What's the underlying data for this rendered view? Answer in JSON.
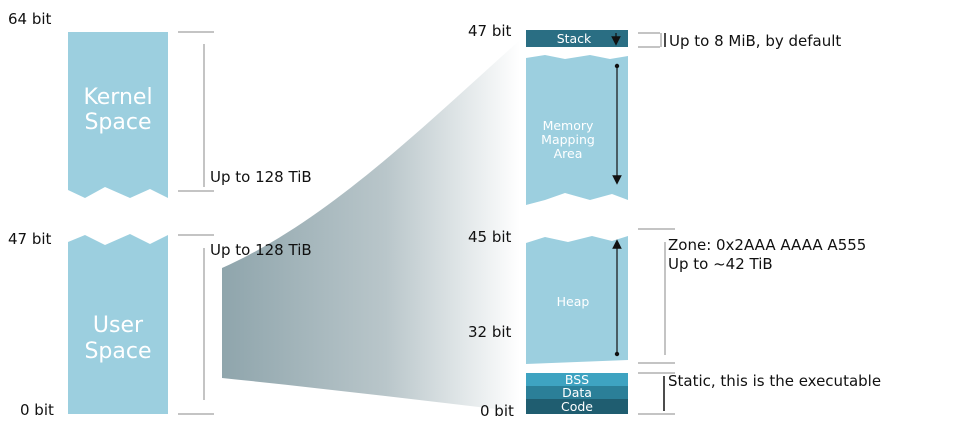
{
  "colors": {
    "block_fill": "#9ccfdf",
    "block_edge": "#7aa9b8",
    "stack_fill": "#2a6e83",
    "bss_fill": "#3ea3c1",
    "data_fill": "#2b7f98",
    "code_fill": "#1f5d70",
    "guide_line": "#8a8a8a",
    "arrow": "#111111",
    "zoom_dark": "#8fa5ac",
    "zoom_light": "#ffffff"
  },
  "left": {
    "label_64": "64 bit",
    "label_47": "47 bit",
    "label_0": "0 bit",
    "kernel_line1": "Kernel",
    "kernel_line2": "Space",
    "user_line1": "User",
    "user_line2": "Space",
    "kernel_size_note": "Up to 128 TiB",
    "user_size_note": "Up to 128 TiB"
  },
  "right": {
    "label_47": "47 bit",
    "label_45": "45 bit",
    "label_32": "32 bit",
    "label_0": "0 bit",
    "stack": "Stack",
    "stack_note": "Up to 8 MiB, by default",
    "mmap_line1": "Memory",
    "mmap_line2": "Mapping",
    "mmap_line3": "Area",
    "heap": "Heap",
    "heap_note_line1": "Zone: 0x2AAA AAAA A555",
    "heap_note_line2": "Up to ~42 TiB",
    "bss": "BSS",
    "data": "Data",
    "code": "Code",
    "static_note": "Static, this is the executable"
  }
}
